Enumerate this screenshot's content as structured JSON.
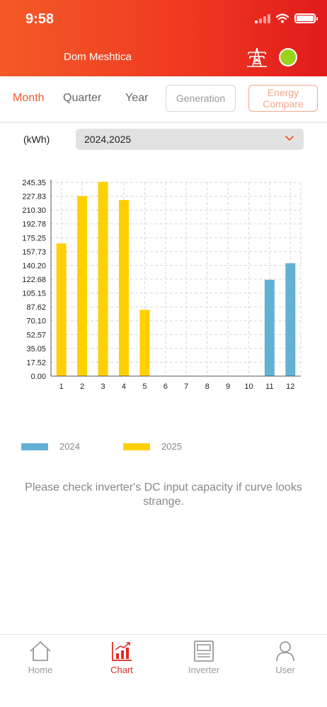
{
  "status_bar": {
    "time": "9:58"
  },
  "header": {
    "station_name": "Dom Meshtica"
  },
  "tabs": {
    "month": "Month",
    "quarter": "Quarter",
    "year": "Year",
    "generation": "Generation",
    "energy_compare": "Energy Compare"
  },
  "selector": {
    "unit": "(kWh)",
    "value": "2024,2025"
  },
  "colors": {
    "accent": "#f05a28",
    "series_2024": "#62b1d4",
    "series_2025": "#ffd000",
    "online": "#9ad31a"
  },
  "chart_data": {
    "type": "bar",
    "categories": [
      "1",
      "2",
      "3",
      "4",
      "5",
      "6",
      "7",
      "8",
      "9",
      "10",
      "11",
      "12"
    ],
    "series": [
      {
        "name": "2024",
        "values": [
          0,
          0,
          0,
          0,
          0,
          0,
          0,
          0,
          0,
          0,
          122,
          143
        ]
      },
      {
        "name": "2025",
        "values": [
          168,
          228,
          246,
          223,
          84,
          0,
          0,
          0,
          0,
          0,
          0,
          0
        ]
      }
    ],
    "y_ticks": [
      "0.00",
      "17.52",
      "35.05",
      "52.57",
      "70.10",
      "87.62",
      "105.15",
      "122.68",
      "140.20",
      "157.73",
      "175.25",
      "192.78",
      "210.30",
      "227.83",
      "245.35"
    ],
    "ylim": [
      0,
      245.35
    ],
    "grid": true
  },
  "legend": [
    {
      "label": "2024"
    },
    {
      "label": "2025"
    }
  ],
  "notice": "Please check inverter's DC input capacity if curve looks strange.",
  "bottom_nav": {
    "home": "Home",
    "chart": "Chart",
    "inverter": "Inverter",
    "user": "User"
  }
}
